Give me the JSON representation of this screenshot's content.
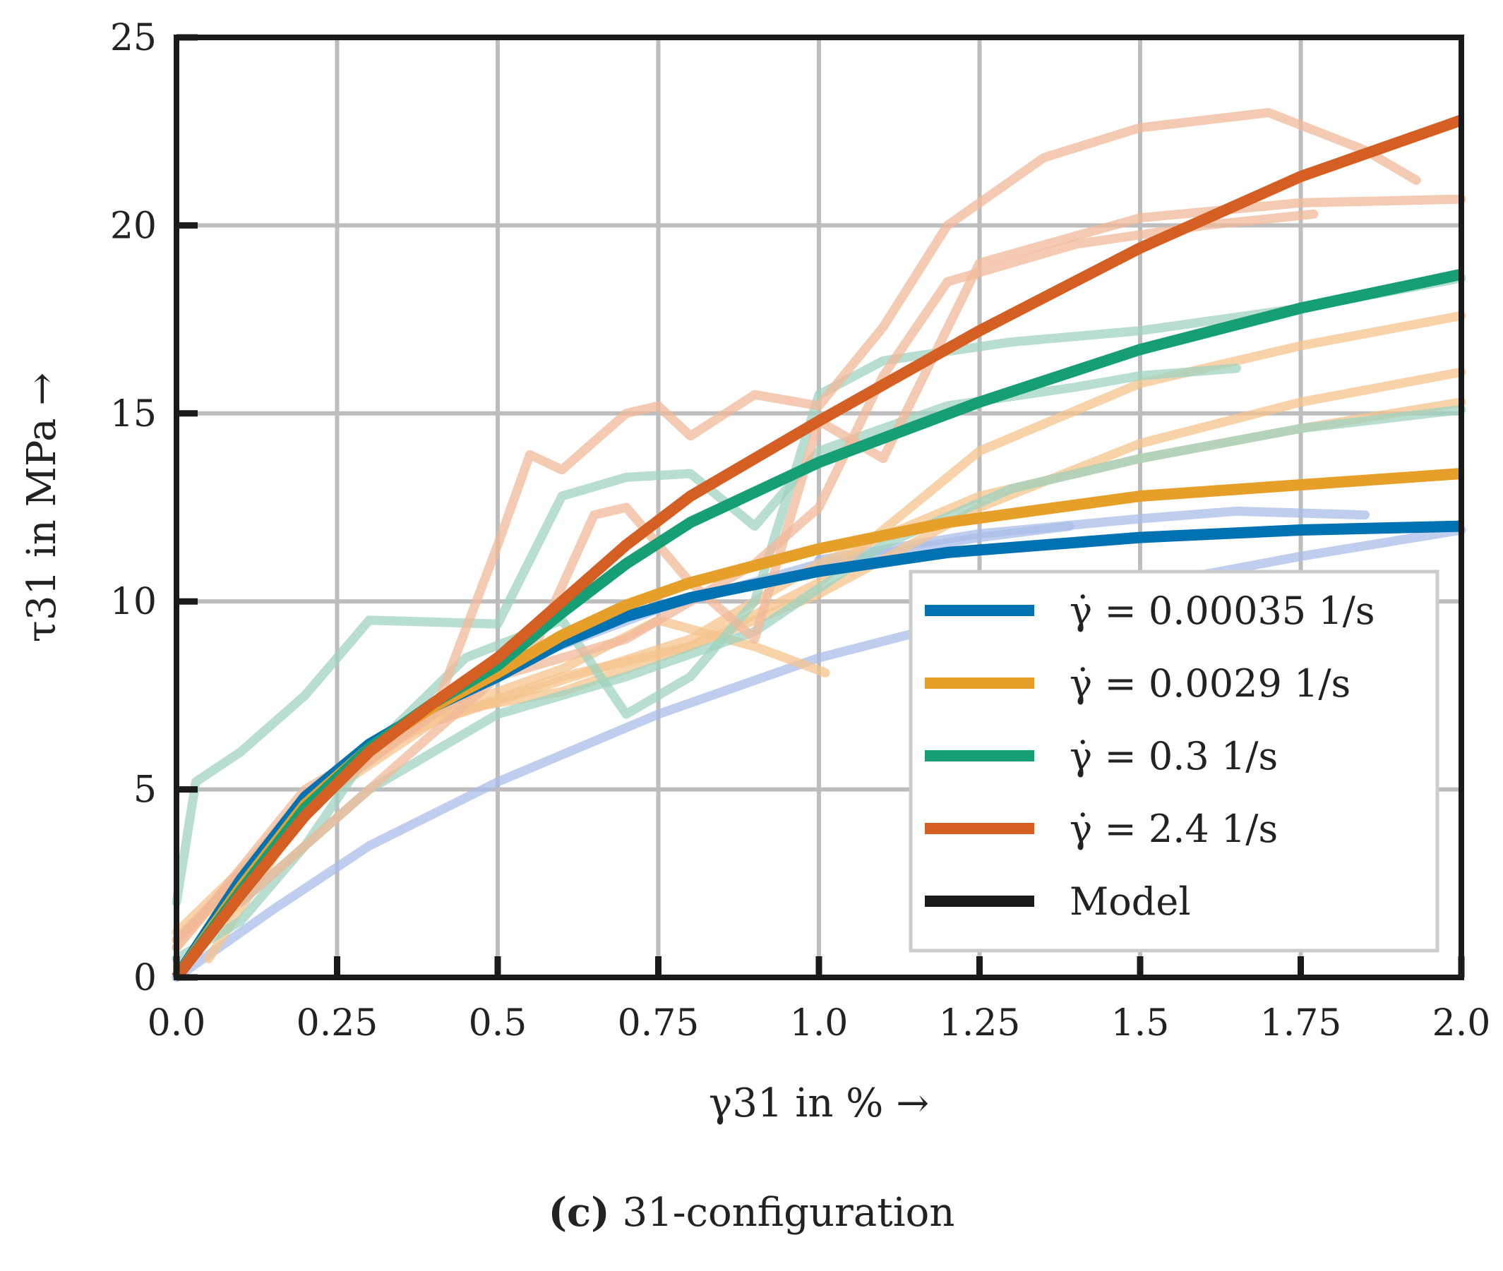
{
  "chart_data": {
    "type": "line",
    "title": "",
    "xlabel": "γ31 in % →",
    "ylabel": "τ31 in MPa →",
    "xlim": [
      0,
      2.0
    ],
    "ylim": [
      0,
      25
    ],
    "grid": true,
    "xticks": [
      0.0,
      0.25,
      0.5,
      0.75,
      1.0,
      1.25,
      1.5,
      1.75,
      2.0
    ],
    "xtick_labels": [
      "0.0",
      "0.25",
      "0.5",
      "0.75",
      "1.0",
      "1.25",
      "1.5",
      "1.75",
      "2.0"
    ],
    "yticks": [
      0,
      5,
      10,
      15,
      20,
      25
    ],
    "ytick_labels": [
      "0",
      "5",
      "10",
      "15",
      "20",
      "25"
    ],
    "legend_position": "lower-right",
    "legend": [
      {
        "label": "γ̇ = 0.00035 1/s",
        "color": "#0072b2"
      },
      {
        "label": "γ̇ = 0.0029 1/s",
        "color": "#e69f28"
      },
      {
        "label": "γ̇ = 0.3 1/s",
        "color": "#169e75"
      },
      {
        "label": "γ̇ = 2.4 1/s",
        "color": "#d55e23"
      },
      {
        "label": "Model",
        "color": "#1a1a1a"
      }
    ],
    "model_series": [
      {
        "name": "γ̇ = 0.00035 1/s",
        "color": "#0072b2",
        "x": [
          0,
          0.1,
          0.2,
          0.3,
          0.4,
          0.5,
          0.6,
          0.7,
          0.8,
          1.0,
          1.2,
          1.5,
          1.75,
          2.0
        ],
        "y": [
          0,
          2.6,
          4.8,
          6.2,
          7.2,
          8.0,
          8.9,
          9.6,
          10.1,
          10.8,
          11.3,
          11.7,
          11.9,
          12.0
        ]
      },
      {
        "name": "γ̇ = 0.0029 1/s",
        "color": "#e69f28",
        "x": [
          0,
          0.1,
          0.2,
          0.3,
          0.4,
          0.5,
          0.6,
          0.7,
          0.8,
          1.0,
          1.2,
          1.5,
          1.75,
          2.0
        ],
        "y": [
          0,
          2.4,
          4.6,
          6.1,
          7.2,
          8.1,
          9.1,
          9.9,
          10.5,
          11.4,
          12.1,
          12.8,
          13.1,
          13.4
        ]
      },
      {
        "name": "γ̇ = 0.3 1/s",
        "color": "#169e75",
        "x": [
          0,
          0.1,
          0.2,
          0.3,
          0.4,
          0.5,
          0.6,
          0.7,
          0.8,
          1.0,
          1.25,
          1.5,
          1.75,
          2.0
        ],
        "y": [
          0,
          2.3,
          4.5,
          6.1,
          7.3,
          8.3,
          9.7,
          11.0,
          12.1,
          13.7,
          15.3,
          16.7,
          17.8,
          18.7
        ]
      },
      {
        "name": "γ̇ = 2.4 1/s",
        "color": "#d55e23",
        "x": [
          0,
          0.1,
          0.2,
          0.3,
          0.4,
          0.5,
          0.6,
          0.7,
          0.8,
          1.0,
          1.25,
          1.5,
          1.75,
          2.0
        ],
        "y": [
          0,
          2.2,
          4.3,
          6.0,
          7.3,
          8.5,
          10.0,
          11.5,
          12.8,
          14.8,
          17.2,
          19.4,
          21.3,
          22.8
        ]
      }
    ],
    "experiment_series": [
      {
        "name": "exp 0.00035 #1",
        "color": "#a9bde8",
        "x": [
          0,
          0.15,
          0.3,
          0.5,
          0.75,
          1.0,
          1.25,
          1.5,
          1.75,
          2.0
        ],
        "y": [
          0,
          1.8,
          3.5,
          5.2,
          7.0,
          8.5,
          9.6,
          10.4,
          11.2,
          11.9
        ]
      },
      {
        "name": "exp 0.00035 #2",
        "color": "#a9bde8",
        "x": [
          0.5,
          0.75,
          1.0,
          1.25,
          1.39
        ],
        "y": [
          8.2,
          9.8,
          11.0,
          11.7,
          12.0
        ]
      },
      {
        "name": "exp 0.00035 #3",
        "color": "#a9bde8",
        "x": [
          1.0,
          1.25,
          1.5,
          1.65,
          1.85
        ],
        "y": [
          11.1,
          11.8,
          12.2,
          12.4,
          12.3
        ]
      },
      {
        "name": "exp 0.0029 #1",
        "color": "#f5c48e",
        "x": [
          0,
          0.1,
          0.25,
          0.4,
          0.6,
          0.8,
          1.0,
          1.25,
          1.5,
          1.75,
          2.0
        ],
        "y": [
          1.0,
          2.6,
          5.5,
          6.8,
          8.0,
          8.8,
          10.5,
          14.0,
          15.8,
          16.8,
          17.6
        ]
      },
      {
        "name": "exp 0.0029 #2",
        "color": "#f5c48e",
        "x": [
          0,
          0.2,
          0.4,
          0.6,
          0.8,
          1.0,
          1.25,
          1.5,
          1.75,
          2.0
        ],
        "y": [
          0.8,
          4.8,
          7.0,
          7.6,
          8.8,
          10.2,
          12.5,
          14.2,
          15.3,
          16.1
        ]
      },
      {
        "name": "exp 0.0029 #3",
        "color": "#f5c48e",
        "x": [
          0.05,
          0.2,
          0.4,
          0.6,
          0.8,
          1.0,
          1.25,
          1.5,
          1.75,
          2.0
        ],
        "y": [
          0.5,
          4.5,
          6.8,
          7.9,
          9.0,
          11.0,
          12.8,
          13.8,
          14.6,
          15.3
        ]
      },
      {
        "name": "exp 0.0029 #4",
        "color": "#f5c48e",
        "x": [
          0,
          0.2,
          0.4,
          0.6,
          0.75,
          0.9,
          1.01
        ],
        "y": [
          1.2,
          4.5,
          7.0,
          8.2,
          9.5,
          8.8,
          8.1
        ]
      },
      {
        "name": "exp 0.3 #1",
        "color": "#9fd3c0",
        "x": [
          0,
          0.03,
          0.1,
          0.2,
          0.3,
          0.5,
          0.6,
          0.7,
          0.8,
          0.9,
          1.0,
          1.2,
          1.4,
          1.5,
          1.65
        ],
        "y": [
          2.0,
          5.2,
          6.0,
          7.5,
          9.5,
          9.4,
          12.8,
          13.3,
          13.4,
          12.0,
          14.0,
          15.2,
          15.7,
          16.0,
          16.2
        ]
      },
      {
        "name": "exp 0.3 #2",
        "color": "#9fd3c0",
        "x": [
          0,
          0.1,
          0.2,
          0.3,
          0.45,
          0.6,
          0.7,
          0.8,
          0.9,
          1.0,
          1.1,
          1.3,
          1.5,
          1.75,
          2.0
        ],
        "y": [
          0.5,
          1.5,
          3.5,
          6.0,
          8.5,
          9.5,
          7.0,
          8.0,
          10.0,
          15.5,
          16.4,
          16.9,
          17.2,
          17.8,
          18.6
        ]
      },
      {
        "name": "exp 0.3 #3",
        "color": "#9fd3c0",
        "x": [
          0.1,
          0.3,
          0.5,
          0.7,
          0.9,
          1.1,
          1.3,
          1.5,
          1.75,
          2.0
        ],
        "y": [
          2.0,
          5.0,
          7.0,
          8.0,
          9.2,
          11.5,
          13.0,
          13.8,
          14.6,
          15.1
        ]
      },
      {
        "name": "exp 2.4 #1",
        "color": "#f2b899",
        "x": [
          0,
          0.2,
          0.4,
          0.5,
          0.55,
          0.6,
          0.7,
          0.75,
          0.8,
          0.9,
          1.0,
          1.1,
          1.2,
          1.35,
          1.5,
          1.7,
          1.85,
          1.93
        ],
        "y": [
          1.0,
          4.5,
          7.0,
          11.5,
          13.9,
          13.5,
          15.0,
          15.2,
          14.4,
          15.5,
          15.2,
          17.3,
          20.0,
          21.8,
          22.6,
          23.0,
          22.0,
          21.2
        ]
      },
      {
        "name": "exp 2.4 #2",
        "color": "#f2b899",
        "x": [
          0,
          0.2,
          0.4,
          0.55,
          0.65,
          0.7,
          0.8,
          0.9,
          1.0,
          1.1,
          1.25,
          1.5,
          1.75,
          2.0
        ],
        "y": [
          0.8,
          5.0,
          7.0,
          8.5,
          12.3,
          12.5,
          10.5,
          9.0,
          14.8,
          13.8,
          19.0,
          20.2,
          20.6,
          20.7
        ]
      },
      {
        "name": "exp 2.4 #3",
        "color": "#f2b899",
        "x": [
          0.1,
          0.3,
          0.5,
          0.7,
          0.9,
          1.0,
          1.1,
          1.2,
          1.4,
          1.6,
          1.77
        ],
        "y": [
          2.0,
          5.0,
          8.0,
          9.0,
          11.0,
          12.5,
          16.0,
          18.5,
          19.5,
          20.0,
          20.3
        ]
      }
    ]
  },
  "caption": {
    "label": "(c)",
    "text": "31-configuration"
  }
}
